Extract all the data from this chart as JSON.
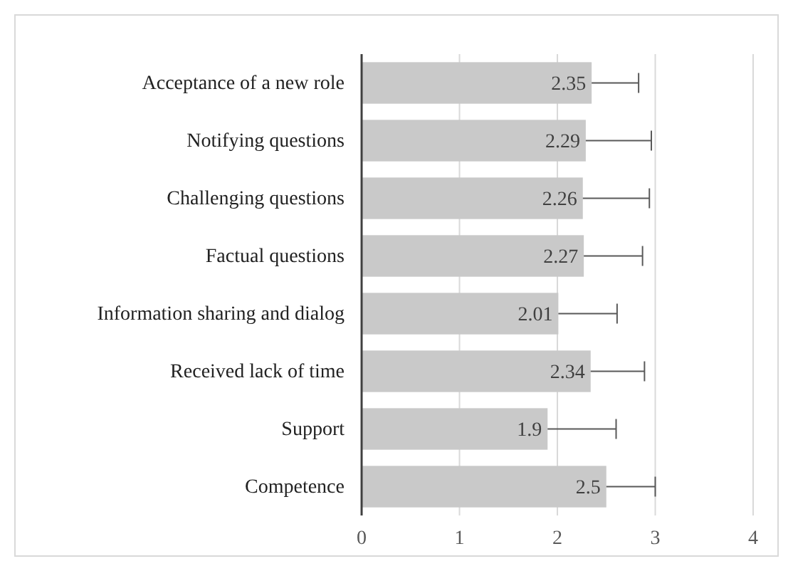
{
  "chart_data": {
    "type": "bar",
    "orientation": "horizontal",
    "categories": [
      "Acceptance of a new role",
      "Notifying questions",
      "Challenging questions",
      "Factual questions",
      "Information sharing and dialog",
      "Received lack of time",
      "Support",
      "Competence"
    ],
    "values": [
      2.35,
      2.29,
      2.26,
      2.27,
      2.01,
      2.34,
      1.9,
      2.5
    ],
    "errors": [
      0.48,
      0.67,
      0.68,
      0.6,
      0.6,
      0.55,
      0.7,
      0.5
    ],
    "color": "#c9c9c9",
    "data_labels": true,
    "grid": "x",
    "xlim": [
      0,
      4
    ],
    "xticks": [
      0,
      1,
      2,
      3,
      4
    ]
  }
}
